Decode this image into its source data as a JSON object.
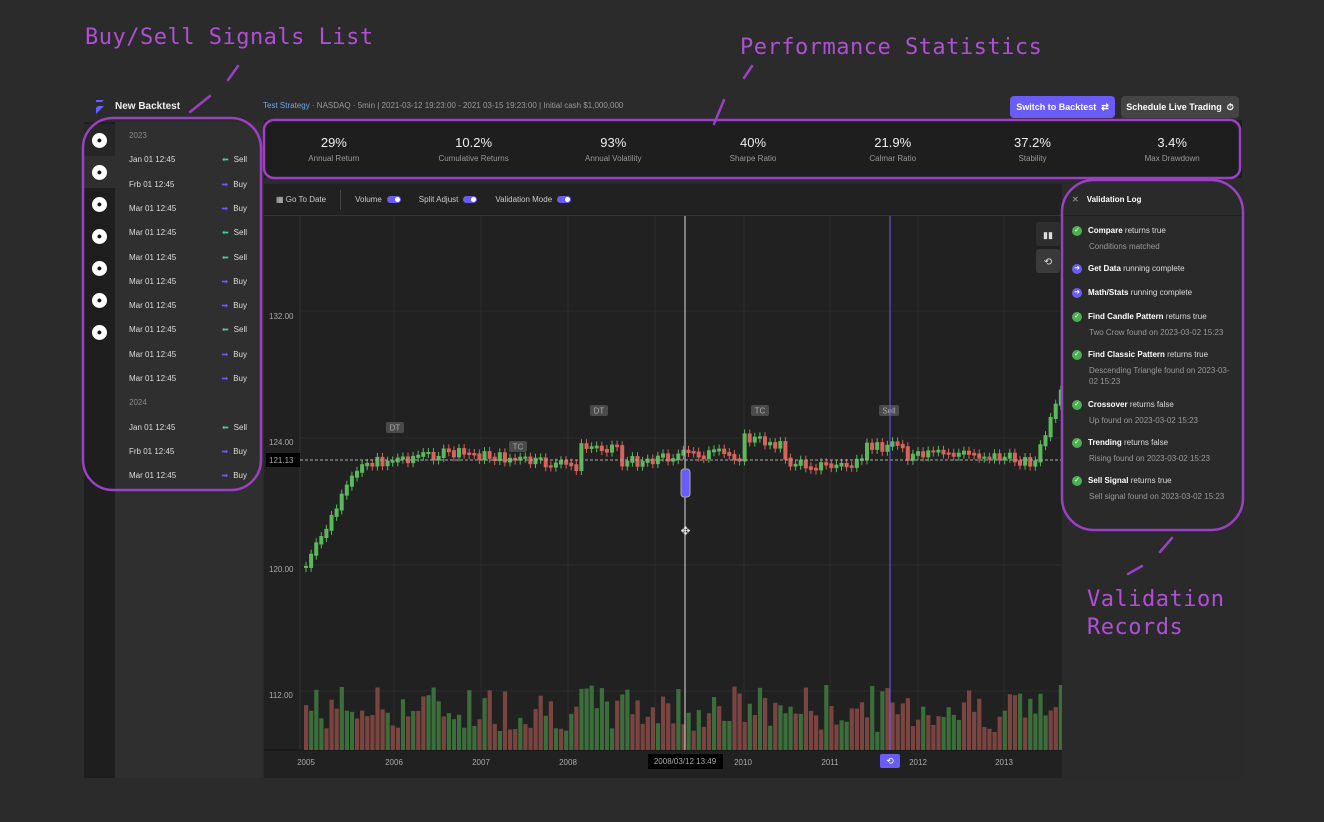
{
  "annotations": {
    "signals": "Buy/Sell Signals List",
    "stats": "Performance Statistics",
    "validation_1": "Validation",
    "validation_2": "Records"
  },
  "header": {
    "title": "New Backtest",
    "strategy_link": "Test Strategy",
    "strategy_info": " · NASDAQ · 5min | 2021-03-12 19:23:00 - 2021 03-15 19:23:00 | Initial cash $1,000,000",
    "switch_button": "Switch to Backtest",
    "schedule_button": "Schedule Live Trading"
  },
  "signals": {
    "groups": [
      {
        "year": "2023",
        "items": [
          {
            "date": "Jan 01 12:45",
            "type": "Sell"
          },
          {
            "date": "Frb 01 12:45",
            "type": "Buy"
          },
          {
            "date": "Mar 01 12:45",
            "type": "Buy"
          },
          {
            "date": "Mar 01 12:45",
            "type": "Sell"
          },
          {
            "date": "Mar 01 12:45",
            "type": "Sell"
          },
          {
            "date": "Mar 01 12:45",
            "type": "Buy"
          },
          {
            "date": "Mar 01 12:45",
            "type": "Buy"
          },
          {
            "date": "Mar 01 12:45",
            "type": "Sell"
          },
          {
            "date": "Mar 01 12:45",
            "type": "Buy"
          },
          {
            "date": "Mar 01 12:45",
            "type": "Buy"
          }
        ]
      },
      {
        "year": "2024",
        "items": [
          {
            "date": "Jan 01 12:45",
            "type": "Sell"
          },
          {
            "date": "Frb 01 12:45",
            "type": "Buy"
          },
          {
            "date": "Mar 01 12:45",
            "type": "Buy"
          }
        ]
      }
    ]
  },
  "stats": [
    {
      "value": "29%",
      "label": "Annual Return"
    },
    {
      "value": "10.2%",
      "label": "Cumulative Returns"
    },
    {
      "value": "93%",
      "label": "Annual Volatility"
    },
    {
      "value": "40%",
      "label": "Sharpe Ratio"
    },
    {
      "value": "21.9%",
      "label": "Calmar Ratio"
    },
    {
      "value": "37.2%",
      "label": "Stability"
    },
    {
      "value": "3.4%",
      "label": "Max Drawdown"
    }
  ],
  "toolbar": {
    "go_to_date": "Go To Date",
    "volume": "Volume",
    "split_adjust": "Split Adjust",
    "validation_mode": "Validation Mode",
    "volume_on": true,
    "split_adjust_on": true,
    "validation_mode_on": true
  },
  "chart": {
    "price_ticks": [
      "132.00",
      "124.00",
      "120.00",
      "112.00"
    ],
    "current_price": "121.13",
    "years": [
      "2005",
      "2006",
      "2007",
      "2008",
      "2010",
      "2011",
      "2012",
      "2013"
    ],
    "crosshair_time": "2008/03/12 13:49",
    "markers": [
      "DT",
      "TC",
      "DT",
      "TC",
      "Sell"
    ],
    "colors": {
      "up": "#5cb85c",
      "down": "#d9635a",
      "accent": "#6a5cf6"
    }
  },
  "validation_log": {
    "title": "Validation Log",
    "entries": [
      {
        "name": "Compare",
        "status": "returns true",
        "detail": "Conditions matched",
        "icon": "check"
      },
      {
        "name": "Get Data",
        "status": "running complete",
        "detail": "",
        "icon": "arrow"
      },
      {
        "name": "Math/Stats",
        "status": "running complete",
        "detail": "",
        "icon": "arrow"
      },
      {
        "name": "Find Candle Pattern",
        "status": "returns true",
        "detail": "Two Crow found on 2023-03-02 15:23",
        "icon": "check"
      },
      {
        "name": "Find Classic Pattern",
        "status": "returns true",
        "detail": "Descending Triangle found on 2023-03-02 15:23",
        "icon": "check"
      },
      {
        "name": "Crossover",
        "status": "returns false",
        "detail": "Up found on 2023-03-02 15:23",
        "icon": "check"
      },
      {
        "name": "Trending",
        "status": "returns false",
        "detail": "Rising found on 2023-03-02 15:23",
        "icon": "check"
      },
      {
        "name": "Sell Signal",
        "status": "returns true",
        "detail": "Sell signal found on 2023-03-02 15:23",
        "icon": "check"
      }
    ]
  }
}
